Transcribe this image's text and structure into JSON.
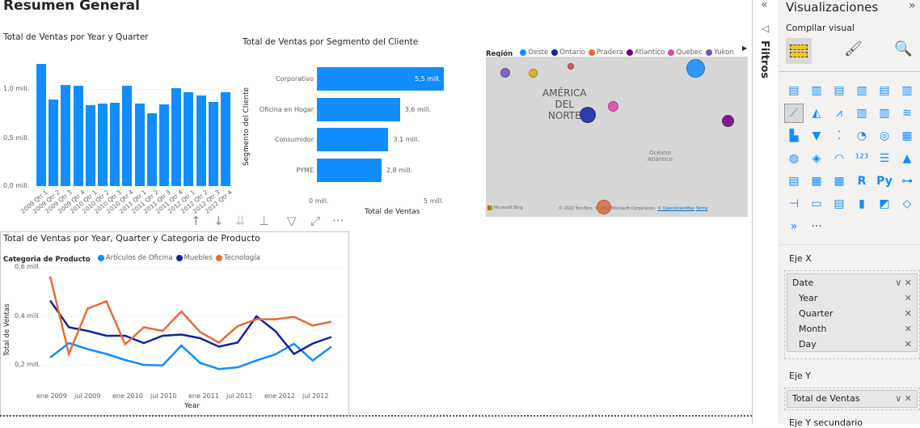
{
  "page": {
    "title": "Resumen General"
  },
  "chart_data": [
    {
      "type": "bar",
      "title": "Total de Ventas por Year y Quarter",
      "xlabel": "",
      "ylabel": "",
      "categories": [
        "2009 Qtr 1",
        "2009 Qtr 2",
        "2009 Qtr 3",
        "2009 Qtr 4",
        "2010 Qtr 1",
        "2010 Qtr 2",
        "2010 Qtr 3",
        "2010 Qtr 4",
        "2011 Qtr 1",
        "2011 Qtr 2",
        "2011 Qtr 3",
        "2011 Qtr 4",
        "2012 Qtr 1",
        "2012 Qtr 2",
        "2012 Qtr 3",
        "2012 Qtr 4"
      ],
      "values": [
        1.26,
        0.89,
        1.04,
        1.03,
        0.83,
        0.85,
        0.86,
        1.03,
        0.85,
        0.75,
        0.84,
        1.01,
        0.97,
        0.93,
        0.87,
        0.97
      ],
      "y_ticks": [
        "0,0 mill.",
        "0,5 mill.",
        "1,0 mill."
      ],
      "ylim": [
        0,
        1.3
      ],
      "grid": true
    },
    {
      "type": "bar",
      "orientation": "horizontal",
      "title": "Total de Ventas por Segmento del Cliente",
      "xlabel": "Total de Ventas",
      "ylabel": "Segmento del Cliente",
      "categories": [
        "Corporativo",
        "Oficina en Hogar",
        "Consumidor",
        "PYME"
      ],
      "values": [
        5.5,
        3.6,
        3.1,
        2.8
      ],
      "data_labels": [
        "5,5 mill.",
        "3,6 mill.",
        "3,1 mill.",
        "2,8 mill."
      ],
      "x_ticks": [
        "0 mill.",
        "5 mill."
      ],
      "xlim": [
        0,
        5.6
      ]
    },
    {
      "type": "line",
      "title": "Total de Ventas por Year, Quarter y Categoria de Producto",
      "xlabel": "Year",
      "ylabel": "Total de Ventas",
      "legend_title": "Categoria de Producto",
      "x_ticks": [
        "ene 2009",
        "jul 2009",
        "ene 2010",
        "jul 2010",
        "ene 2011",
        "jul 2011",
        "ene 2012",
        "jul 2012"
      ],
      "y_ticks": [
        "0,2 mill.",
        "0,4 mill.",
        "0,6 mill."
      ],
      "ylim": [
        0.1,
        0.6
      ],
      "x": [
        "2009 Q1",
        "2009 Q2",
        "2009 Q3",
        "2009 Q4",
        "2010 Q1",
        "2010 Q2",
        "2010 Q3",
        "2010 Q4",
        "2011 Q1",
        "2011 Q2",
        "2011 Q3",
        "2011 Q4",
        "2012 Q1",
        "2012 Q2",
        "2012 Q3",
        "2012 Q4"
      ],
      "series": [
        {
          "name": "Artículos de Oficina",
          "color": "#118DFF",
          "values": [
            0.23,
            0.29,
            0.265,
            0.245,
            0.22,
            0.2,
            0.198,
            0.28,
            0.208,
            0.183,
            0.19,
            0.218,
            0.243,
            0.287,
            0.218,
            0.275
          ]
        },
        {
          "name": "Muebles",
          "color": "#12239E",
          "values": [
            0.465,
            0.355,
            0.34,
            0.32,
            0.32,
            0.29,
            0.32,
            0.325,
            0.31,
            0.275,
            0.292,
            0.4,
            0.34,
            0.245,
            0.288,
            0.315
          ]
        },
        {
          "name": "Tecnología",
          "color": "#E66C37",
          "values": [
            0.565,
            0.245,
            0.432,
            0.462,
            0.285,
            0.355,
            0.34,
            0.42,
            0.335,
            0.292,
            0.36,
            0.388,
            0.388,
            0.398,
            0.362,
            0.378
          ]
        }
      ]
    }
  ],
  "map": {
    "legend_title": "Región",
    "legend": [
      {
        "name": "Oeste",
        "color": "#118DFF"
      },
      {
        "name": "Ontario",
        "color": "#12239E"
      },
      {
        "name": "Pradera",
        "color": "#E66C37"
      },
      {
        "name": "Atlantico",
        "color": "#6B007B"
      },
      {
        "name": "Quebec",
        "color": "#E044A7"
      },
      {
        "name": "Yukon",
        "color": "#744EC2"
      }
    ],
    "continent_label_1": "AMÉRICA",
    "continent_label_2": "DEL",
    "continent_label_3": "NORTE",
    "ocean_label_1": "Océano",
    "ocean_label_2": "Atlántico",
    "bing_label": "Microsoft Bing",
    "copyright": "© 2022 TomTom, © 2022 Microsoft Corporation,",
    "osm_link": "© OpenStreetMap",
    "terms_link": "Terms"
  },
  "visual_header": {
    "drill_up": "↑",
    "drill_down": "↓",
    "expand_all": "⇊",
    "expand_hierarchy": "⊥",
    "filter": "▽",
    "focus": "⤢",
    "more": "···"
  },
  "filters_pane": {
    "label": "Filtros",
    "collapse": "«"
  },
  "viz_pane": {
    "title": "Visualizaciones",
    "expand": "»",
    "subtitle": "Compilar visual",
    "more_visuals": "···",
    "x_axis_label": "Eje X",
    "x_axis_field": "Date",
    "x_axis_children": [
      "Year",
      "Quarter",
      "Month",
      "Day"
    ],
    "y_axis_label": "Eje Y",
    "y_axis_field": "Total de Ventas",
    "secondary_y_label": "Eje Y secundario"
  }
}
